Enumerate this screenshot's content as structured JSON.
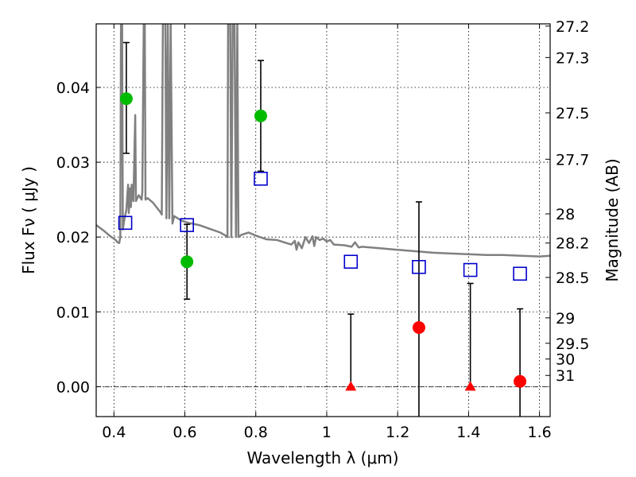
{
  "chart_data": {
    "type": "scatter",
    "xlabel": "Wavelength  λ (μm)",
    "ylabel": "Flux  Fν  ( μJy )",
    "ylabel_right": "Magnitude (AB)",
    "xlim": [
      0.35,
      1.63
    ],
    "ylim": [
      -0.004,
      0.0485
    ],
    "x_ticks": [
      0.4,
      0.6,
      0.8,
      1.0,
      1.2,
      1.4,
      1.6
    ],
    "x_tick_labels": [
      "0.4",
      "0.6",
      "0.8",
      "1",
      "1.2",
      "1.4",
      "1.6"
    ],
    "y_ticks": [
      0.0,
      0.01,
      0.02,
      0.03,
      0.04
    ],
    "y_tick_labels": [
      "0.00",
      "0.01",
      "0.02",
      "0.03",
      "0.04"
    ],
    "right_ticks": [
      {
        "label": "27.2",
        "flux": 0.0482
      },
      {
        "label": "27.3",
        "flux": 0.044
      },
      {
        "label": "27.5",
        "flux": 0.0366
      },
      {
        "label": "27.7",
        "flux": 0.0304
      },
      {
        "label": "28",
        "flux": 0.0231
      },
      {
        "label": "28.2",
        "flux": 0.0192
      },
      {
        "label": "28.5",
        "flux": 0.0146
      },
      {
        "label": "29",
        "flux": 0.0092
      },
      {
        "label": "29.5",
        "flux": 0.0058
      },
      {
        "label": "30",
        "flux": 0.0037
      },
      {
        "label": "31",
        "flux": 0.0015
      }
    ],
    "grid": true,
    "series": [
      {
        "marker": "circle",
        "color": "#00bb00",
        "points": [
          {
            "x": 0.435,
            "y": 0.0385,
            "yerr_low": 0.0312,
            "yerr_high": 0.046
          },
          {
            "x": 0.606,
            "y": 0.0167,
            "yerr_low": 0.0117,
            "yerr_high": 0.0217
          },
          {
            "x": 0.814,
            "y": 0.0362,
            "yerr_low": 0.0288,
            "yerr_high": 0.0436
          }
        ]
      },
      {
        "marker": "circle",
        "color": "#ff0000",
        "points": [
          {
            "x": 1.26,
            "y": 0.0079,
            "yerr_low": -0.0045,
            "yerr_high": 0.0247
          },
          {
            "x": 1.545,
            "y": 0.0007,
            "yerr_low": -0.0045,
            "yerr_high": 0.0104
          }
        ]
      },
      {
        "marker": "triangle",
        "color": "#ff0000",
        "points": [
          {
            "x": 1.068,
            "y": 0.0,
            "yerr_low": 0.0,
            "yerr_high": 0.0097
          },
          {
            "x": 1.405,
            "y": 0.0,
            "yerr_low": 0.0,
            "yerr_high": 0.0138
          }
        ]
      },
      {
        "marker": "square",
        "color": "#0000cc",
        "points": [
          {
            "x": 0.432,
            "y": 0.0219
          },
          {
            "x": 0.606,
            "y": 0.0216
          },
          {
            "x": 0.814,
            "y": 0.0278
          },
          {
            "x": 1.068,
            "y": 0.0167
          },
          {
            "x": 1.26,
            "y": 0.016
          },
          {
            "x": 1.405,
            "y": 0.0156
          },
          {
            "x": 1.545,
            "y": 0.0151
          }
        ]
      }
    ],
    "spectrum": {
      "color": "#808080",
      "points": [
        [
          0.35,
          0.0216
        ],
        [
          0.37,
          0.0209
        ],
        [
          0.39,
          0.0201
        ],
        [
          0.405,
          0.0196
        ],
        [
          0.41,
          0.0193
        ],
        [
          0.415,
          0.0192
        ],
        [
          0.418,
          0.02
        ],
        [
          0.42,
          0.0485
        ],
        [
          0.423,
          0.0485
        ],
        [
          0.425,
          0.021
        ],
        [
          0.43,
          0.0225
        ],
        [
          0.435,
          0.0236
        ],
        [
          0.44,
          0.027
        ],
        [
          0.442,
          0.0232
        ],
        [
          0.445,
          0.0265
        ],
        [
          0.448,
          0.024
        ],
        [
          0.45,
          0.027
        ],
        [
          0.455,
          0.0248
        ],
        [
          0.46,
          0.0363
        ],
        [
          0.462,
          0.0248
        ],
        [
          0.47,
          0.0256
        ],
        [
          0.478,
          0.025
        ],
        [
          0.48,
          0.026
        ],
        [
          0.484,
          0.0485
        ],
        [
          0.487,
          0.0485
        ],
        [
          0.489,
          0.025
        ],
        [
          0.495,
          0.0252
        ],
        [
          0.51,
          0.0246
        ],
        [
          0.52,
          0.024
        ],
        [
          0.53,
          0.0234
        ],
        [
          0.535,
          0.023
        ],
        [
          0.538,
          0.0485
        ],
        [
          0.545,
          0.0485
        ],
        [
          0.548,
          0.0225
        ],
        [
          0.552,
          0.0485
        ],
        [
          0.556,
          0.0225
        ],
        [
          0.56,
          0.0485
        ],
        [
          0.565,
          0.0218
        ],
        [
          0.57,
          0.0228
        ],
        [
          0.59,
          0.0222
        ],
        [
          0.61,
          0.0219
        ],
        [
          0.64,
          0.0216
        ],
        [
          0.67,
          0.0211
        ],
        [
          0.7,
          0.0206
        ],
        [
          0.715,
          0.0202
        ],
        [
          0.72,
          0.02
        ],
        [
          0.722,
          0.0485
        ],
        [
          0.728,
          0.0485
        ],
        [
          0.731,
          0.02
        ],
        [
          0.735,
          0.0485
        ],
        [
          0.74,
          0.0485
        ],
        [
          0.744,
          0.02
        ],
        [
          0.748,
          0.0485
        ],
        [
          0.751,
          0.02
        ],
        [
          0.76,
          0.0203
        ],
        [
          0.78,
          0.0206
        ],
        [
          0.8,
          0.0202
        ],
        [
          0.83,
          0.0197
        ],
        [
          0.86,
          0.0196
        ],
        [
          0.88,
          0.0193
        ],
        [
          0.9,
          0.019
        ],
        [
          0.91,
          0.0195
        ],
        [
          0.915,
          0.0183
        ],
        [
          0.92,
          0.0193
        ],
        [
          0.93,
          0.0185
        ],
        [
          0.94,
          0.02
        ],
        [
          0.95,
          0.0192
        ],
        [
          0.96,
          0.0201
        ],
        [
          0.965,
          0.0188
        ],
        [
          0.97,
          0.02
        ],
        [
          0.98,
          0.0196
        ],
        [
          0.99,
          0.0198
        ],
        [
          1.0,
          0.0194
        ],
        [
          1.01,
          0.0196
        ],
        [
          1.02,
          0.019
        ],
        [
          1.05,
          0.0189
        ],
        [
          1.07,
          0.0187
        ],
        [
          1.08,
          0.0193
        ],
        [
          1.09,
          0.0186
        ],
        [
          1.1,
          0.0187
        ],
        [
          1.15,
          0.0185
        ],
        [
          1.2,
          0.0183
        ],
        [
          1.25,
          0.0181
        ],
        [
          1.3,
          0.0179
        ],
        [
          1.35,
          0.0178
        ],
        [
          1.4,
          0.0177
        ],
        [
          1.45,
          0.0176
        ],
        [
          1.5,
          0.0176
        ],
        [
          1.55,
          0.0175
        ],
        [
          1.6,
          0.0174
        ],
        [
          1.63,
          0.0175
        ]
      ]
    }
  }
}
